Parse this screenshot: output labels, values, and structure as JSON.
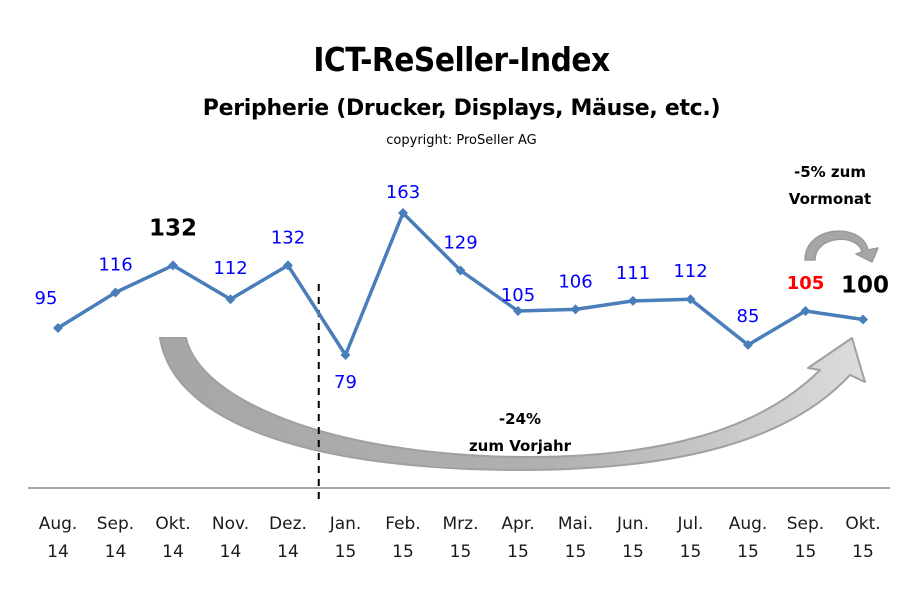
{
  "chart_data": {
    "type": "line",
    "title": "ICT-ReSeller-Index",
    "subtitle": "Peripherie (Drucker, Displays, Mäuse, etc.)",
    "copyright": "copyright: ProSeller AG",
    "categories": [
      [
        "Aug.",
        "14"
      ],
      [
        "Sep.",
        "14"
      ],
      [
        "Okt.",
        "14"
      ],
      [
        "Nov.",
        "14"
      ],
      [
        "Dez.",
        "14"
      ],
      [
        "Jan.",
        "15"
      ],
      [
        "Feb.",
        "15"
      ],
      [
        "Mrz.",
        "15"
      ],
      [
        "Apr.",
        "15"
      ],
      [
        "Mai.",
        "15"
      ],
      [
        "Jun.",
        "15"
      ],
      [
        "Jul.",
        "15"
      ],
      [
        "Aug.",
        "15"
      ],
      [
        "Sep.",
        "15"
      ],
      [
        "Okt.",
        "15"
      ]
    ],
    "series": [
      {
        "name": "ICT-ReSeller-Index Peripherie",
        "color": "#4a7ebb",
        "values": [
          95,
          116,
          132,
          112,
          132,
          79,
          163,
          129,
          105,
          106,
          111,
          112,
          85,
          105,
          100
        ]
      }
    ],
    "data_labels": [
      "95",
      "116",
      "132",
      "112",
      "132",
      "79",
      "163",
      "129",
      "105",
      "106",
      "111",
      "112",
      "85",
      "105",
      "100"
    ],
    "highlight": {
      "black_bold_indices": [
        2,
        14
      ],
      "red_bold_indices": [
        13
      ]
    },
    "label_color": "#0000ff",
    "year_divider_after_index": 4,
    "annotations": {
      "year_over_year": [
        "-24%",
        "zum Vorjahr"
      ],
      "month_over_month": [
        "-5% zum",
        "Vormonat"
      ]
    },
    "xlabel": "",
    "ylabel": "",
    "ylim": [
      0,
      180
    ],
    "grid": false
  }
}
